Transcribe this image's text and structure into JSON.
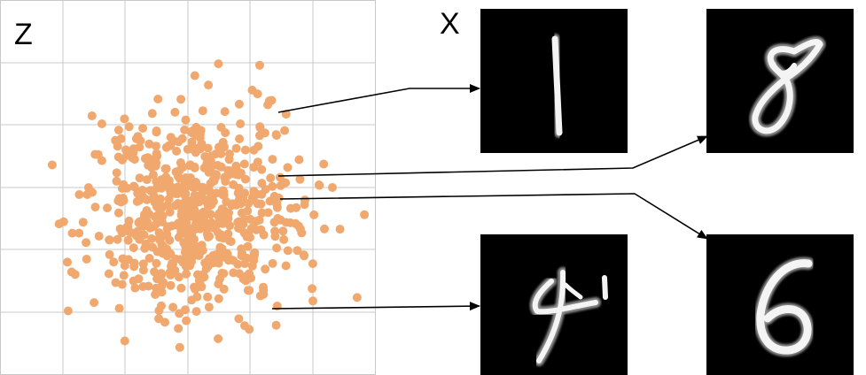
{
  "latent_space": {
    "label": "Z",
    "point_color": "#f0a86e",
    "grid_color": "#c8c8c8"
  },
  "data_space": {
    "label": "X",
    "tile_background": "#000000",
    "stroke_color": "#f4f4f4"
  },
  "samples": [
    {
      "digit": "1",
      "icon": "handwritten-digit-1"
    },
    {
      "digit": "8",
      "icon": "handwritten-digit-8"
    },
    {
      "digit": "4",
      "icon": "handwritten-digit-4"
    },
    {
      "digit": "6",
      "icon": "handwritten-digit-6"
    }
  ]
}
